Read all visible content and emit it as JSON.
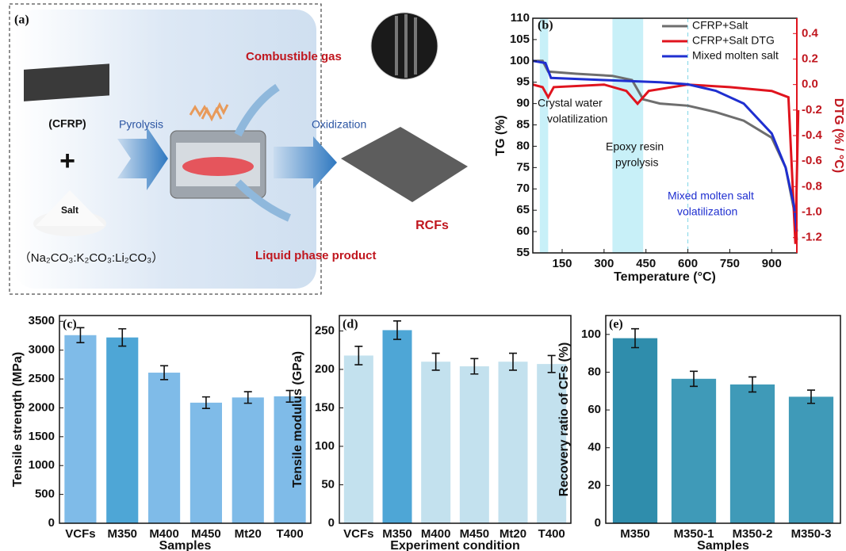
{
  "diagram": {
    "label": "(a)",
    "cfrp": "(CFRP)",
    "salt": "Salt",
    "salt_formula": "（Na₂CO₃:K₂CO₃:Li₂CO₃）",
    "pyrolysis": "Pyrolysis",
    "combustible_gas": "Combustible gas",
    "oxidization": "Oxidization",
    "liquid_product": "Liquid phase product",
    "rcfs": "RCFs"
  },
  "chart_data": [
    {
      "type": "line",
      "label": "(b)",
      "xlabel": "Temperature (°C)",
      "ylabel": "TG (%)",
      "y2label": "DTG (% / °C)",
      "xlim": [
        45,
        990
      ],
      "xticks": [
        150,
        300,
        450,
        600,
        750,
        900
      ],
      "ylim": [
        55,
        110
      ],
      "yticks": [
        55,
        60,
        65,
        70,
        75,
        80,
        85,
        90,
        95,
        100,
        105,
        110
      ],
      "y2lim": [
        -1.32,
        0.52
      ],
      "y2ticks": [
        0.4,
        0.2,
        {
          "value": 0,
          "label": "0.0"
        },
        -0.2,
        -0.4,
        -0.6,
        -0.8,
        {
          "value": -1,
          "label": "-1.0"
        },
        -1.2
      ],
      "legend": "upper right",
      "shaded_ranges": [
        [
          70,
          100
        ],
        [
          330,
          440
        ]
      ],
      "vline": 600,
      "annotations": [
        [
          "Crystal water",
          "volatilization"
        ],
        [
          "Epoxy resin",
          "pyrolysis"
        ],
        [
          "Mixed molten salt",
          "volatilization"
        ]
      ],
      "series": [
        {
          "name": "CFRP+Salt",
          "color": "#6e6e6e",
          "x": [
            45,
            80,
            100,
            200,
            330,
            400,
            440,
            500,
            600,
            700,
            800,
            900,
            950,
            980,
            990
          ],
          "values": [
            100,
            100,
            97.5,
            97,
            96.5,
            95.5,
            91,
            90,
            89.5,
            88,
            86,
            82,
            75,
            65,
            58
          ]
        },
        {
          "name": "CFRP+Salt DTG",
          "color": "#e0141e",
          "axis": "y2",
          "x": [
            45,
            80,
            100,
            120,
            300,
            380,
            420,
            460,
            600,
            750,
            900,
            960,
            985,
            995
          ],
          "values": [
            0,
            -0.02,
            -0.1,
            -0.02,
            0,
            -0.05,
            -0.15,
            -0.05,
            0,
            -0.02,
            -0.05,
            -0.1,
            -1.25,
            -0.2
          ]
        },
        {
          "name": "Mixed molten salt",
          "color": "#1f2fd0",
          "x": [
            45,
            90,
            110,
            300,
            500,
            600,
            700,
            800,
            900,
            950,
            980,
            990
          ],
          "values": [
            100,
            99.5,
            96,
            95.5,
            95,
            94.5,
            93,
            90,
            83,
            75,
            66,
            60
          ]
        }
      ]
    },
    {
      "type": "bar",
      "label": "(c)",
      "xlabel": "Samples",
      "ylabel": "Tensile strength (MPa)",
      "categories": [
        "VCFs",
        "M350",
        "M400",
        "M450",
        "Mt20",
        "T400"
      ],
      "values": [
        3260,
        3220,
        2610,
        2090,
        2180,
        2200
      ],
      "errors": [
        130,
        150,
        120,
        100,
        100,
        100
      ],
      "colors": [
        "#7fbbe8",
        "#4ea6d6",
        "#7fbbe8",
        "#7fbbe8",
        "#7fbbe8",
        "#7fbbe8"
      ],
      "ylim": [
        0,
        3600
      ],
      "yticks": [
        0,
        500,
        1000,
        1500,
        2000,
        2500,
        3000,
        3500
      ]
    },
    {
      "type": "bar",
      "label": "(d)",
      "xlabel": "Experiment condition",
      "ylabel": "Tensile modulus (GPa)",
      "categories": [
        "VCFs",
        "M350",
        "M400",
        "M450",
        "Mt20",
        "T400"
      ],
      "values": [
        218,
        251,
        210,
        204,
        210,
        207
      ],
      "errors": [
        12,
        12,
        11,
        10,
        11,
        11
      ],
      "colors": [
        "#c3e1ee",
        "#4ea6d6",
        "#c3e1ee",
        "#c3e1ee",
        "#c3e1ee",
        "#c3e1ee"
      ],
      "ylim": [
        0,
        270
      ],
      "yticks": [
        0,
        50,
        100,
        150,
        200,
        250
      ]
    },
    {
      "type": "bar",
      "label": "(e)",
      "xlabel": "Samples",
      "ylabel": "Recovery ratio of CFs (%)",
      "categories": [
        "M350",
        "M350-1",
        "M350-2",
        "M350-3"
      ],
      "values": [
        98,
        76.5,
        73.5,
        67
      ],
      "errors": [
        5,
        4,
        4,
        3.5
      ],
      "colors": [
        "#2f8dac",
        "#3f9ab8",
        "#3f9ab8",
        "#3f9ab8"
      ],
      "ylim": [
        0,
        110
      ],
      "yticks": [
        0,
        20,
        40,
        60,
        80,
        100
      ]
    }
  ]
}
